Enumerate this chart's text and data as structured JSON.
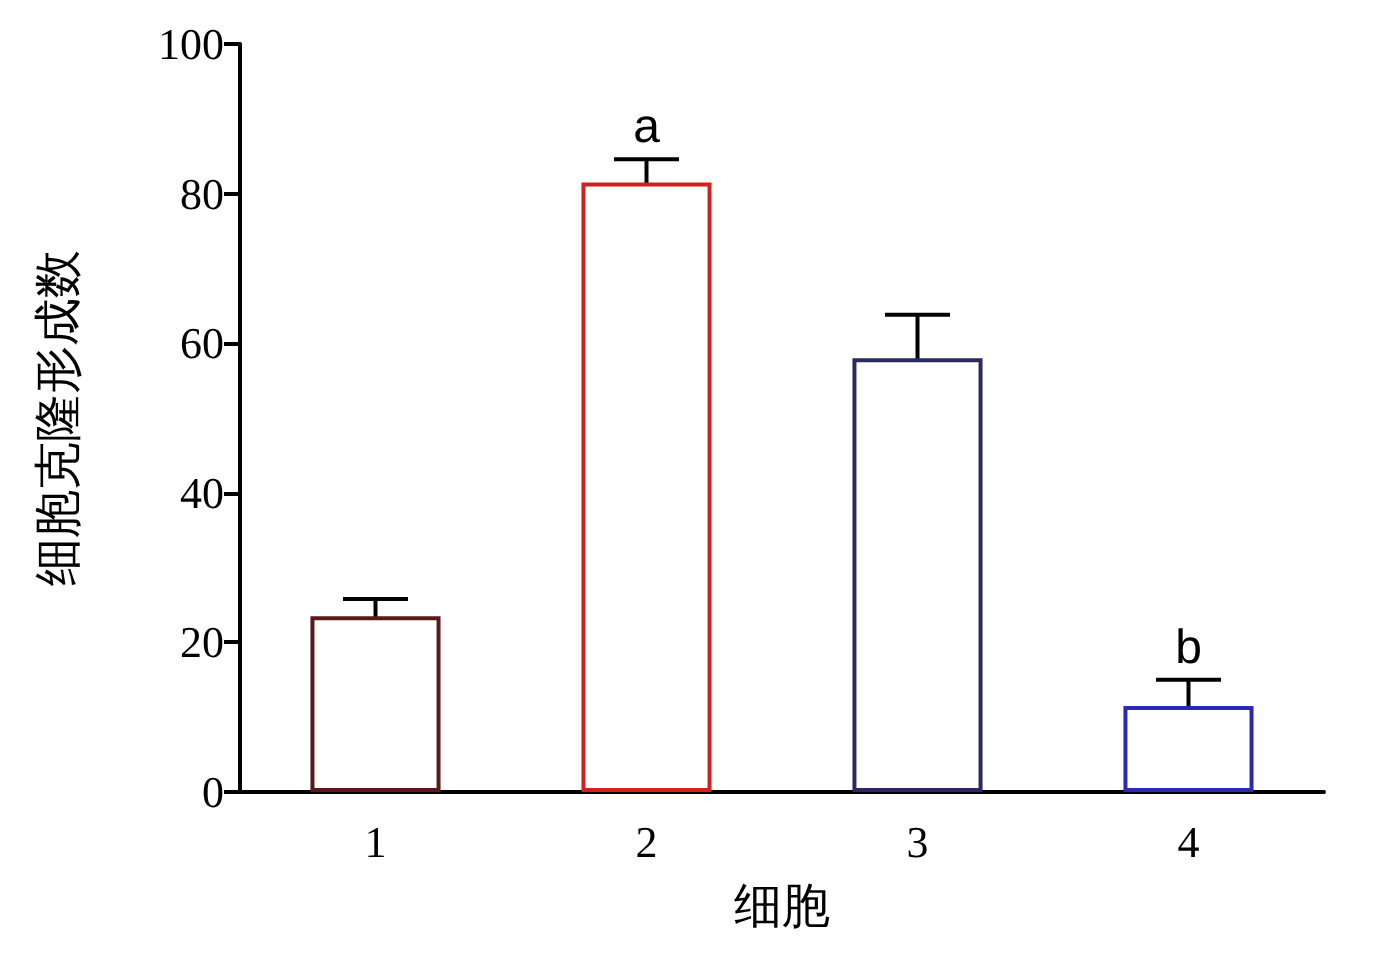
{
  "chart_data": {
    "type": "bar",
    "xlabel": "细胞",
    "ylabel": "细胞克隆形成数",
    "categories": [
      "1",
      "2",
      "3",
      "4"
    ],
    "values": [
      23.5,
      81.5,
      58,
      11.5
    ],
    "errors": [
      2.3,
      3.1,
      5.8,
      3.5
    ],
    "colors": [
      "#5a1a1a",
      "#d02020",
      "#2a2a60",
      "#2a2ab0"
    ],
    "ylim": [
      0,
      100
    ],
    "yticks": [
      0,
      20,
      40,
      60,
      80,
      100
    ],
    "grid": false,
    "annotations": [
      {
        "text": "a",
        "x": "2",
        "y": 84.6
      },
      {
        "text": "b",
        "x": "4",
        "y": 15
      }
    ]
  }
}
